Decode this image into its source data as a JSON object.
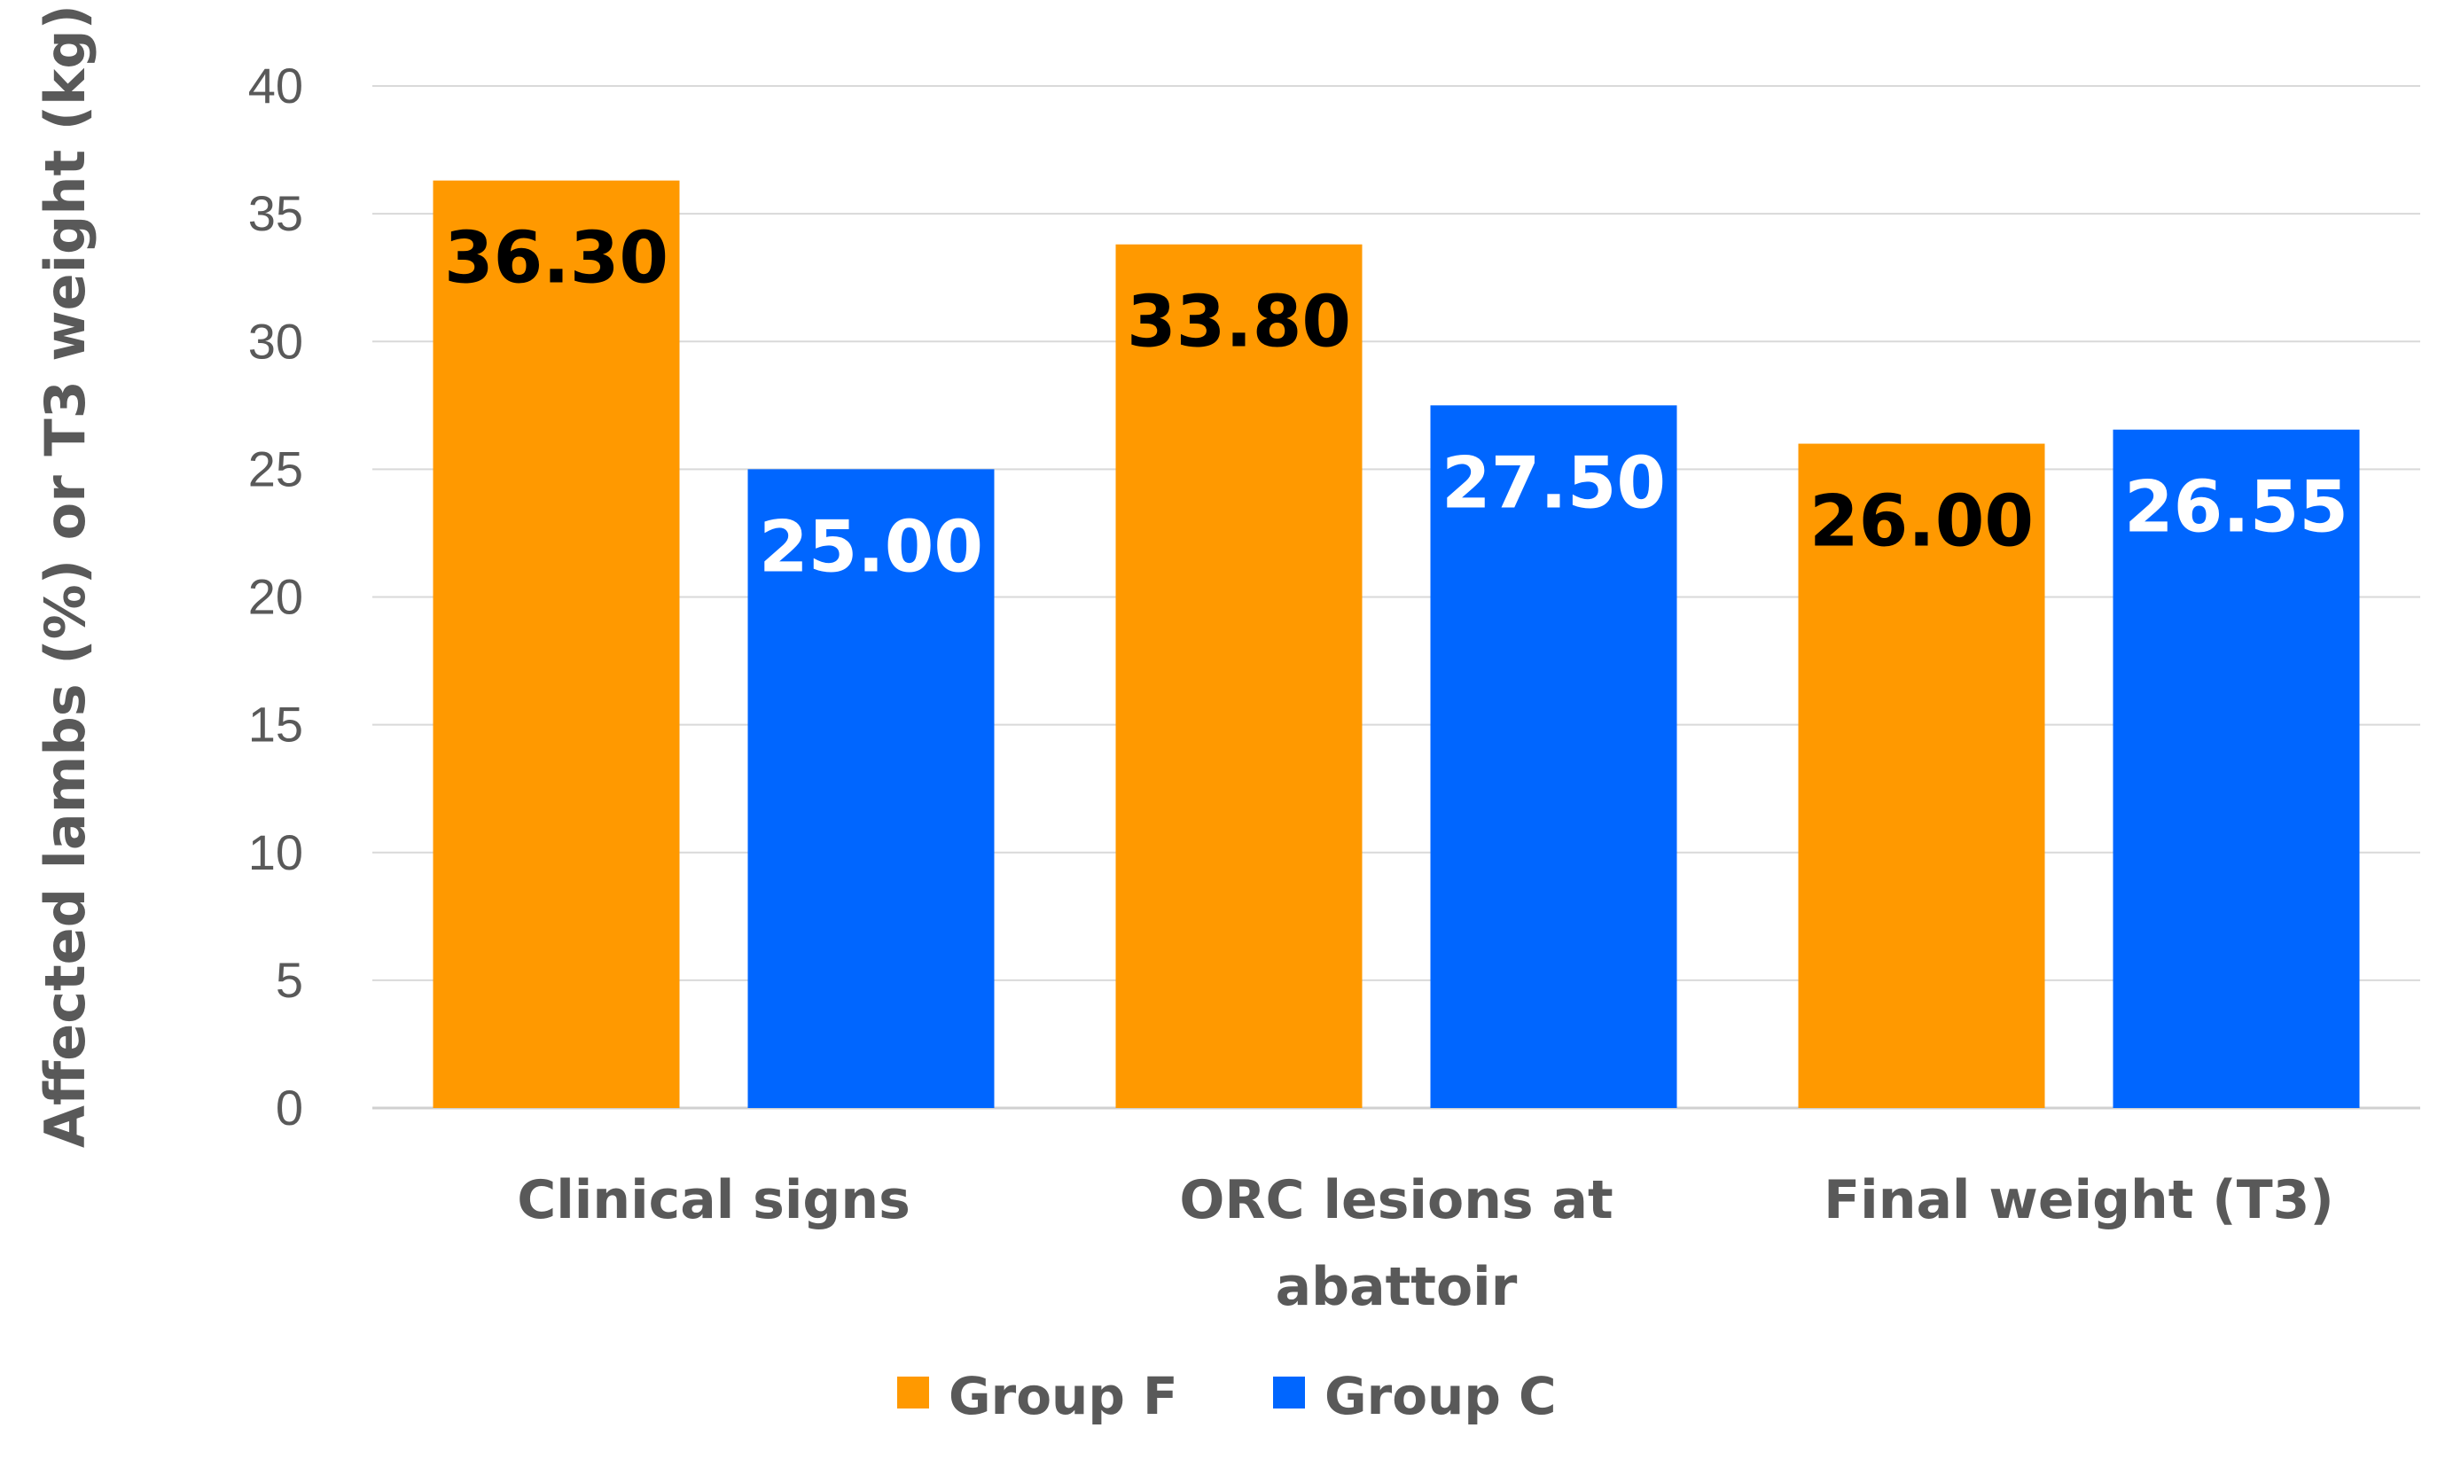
{
  "chart_data": {
    "type": "bar",
    "title": "",
    "xlabel": "",
    "ylabel": "Affected lambs (%) or T3 weight (kg)",
    "ylim": [
      0,
      40
    ],
    "yticks": [
      0,
      5,
      10,
      15,
      20,
      25,
      30,
      35,
      40
    ],
    "grid": true,
    "legend_position": "bottom",
    "categories": [
      [
        "Clinical signs"
      ],
      [
        "ORC lesions at",
        "abattoir"
      ],
      [
        "Final weight (T3)"
      ]
    ],
    "series": [
      {
        "name": "Group F",
        "color": "#FF9900",
        "label_color": "#000000",
        "values": [
          36.3,
          33.8,
          26.0
        ],
        "labels": [
          "36.30",
          "33.80",
          "26.00"
        ]
      },
      {
        "name": "Group C",
        "color": "#0066FF",
        "label_color": "#FFFFFF",
        "values": [
          25.0,
          27.5,
          26.55
        ],
        "labels": [
          "25.00",
          "27.50",
          "26.55"
        ]
      }
    ]
  }
}
